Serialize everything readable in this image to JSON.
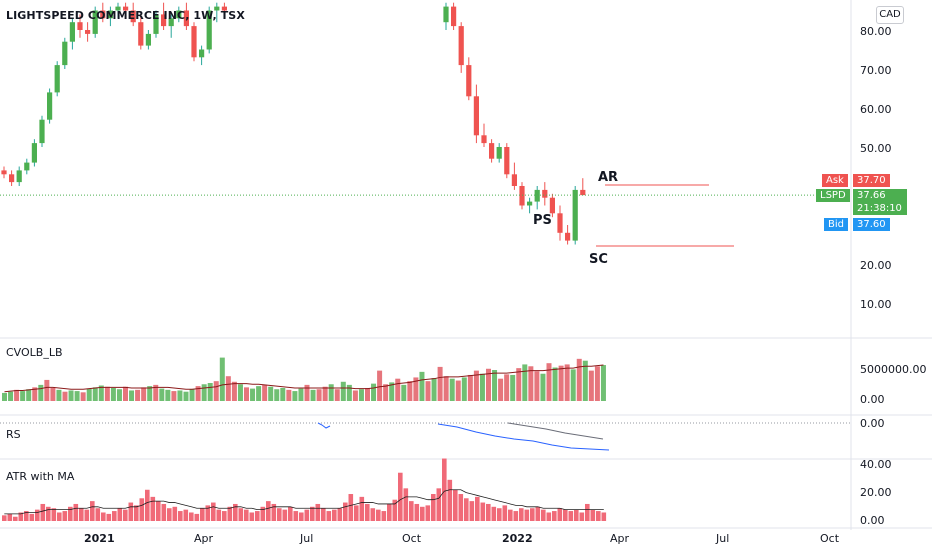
{
  "title": "LIGHTSPEED COMMERCE INC, 1W, TSX",
  "currency": "CAD",
  "x_axis_labels": [
    "2021",
    "Apr",
    "Jul",
    "Oct",
    "2022",
    "Apr",
    "Jul",
    "Oct"
  ],
  "price_axis": [
    "80.00",
    "70.00",
    "60.00",
    "50.00",
    "20.00",
    "10.00"
  ],
  "quotes": {
    "ask_label": "Ask",
    "ask_value": "37.70",
    "symbol": "LSPD",
    "last_value": "37.66",
    "countdown": "21:38:10",
    "bid_label": "Bid",
    "bid_value": "37.60"
  },
  "annotations": {
    "ps": "PS",
    "sc": "SC",
    "ar": "AR"
  },
  "indicators": {
    "volume_name": "CVOLB_LB",
    "volume_ticks": [
      "5000000.00",
      "0.00"
    ],
    "rs_name": "RS",
    "rs_ticks": [
      "0.00"
    ],
    "atr_name": "ATR with MA",
    "atr_ticks": [
      "40.00",
      "20.00",
      "0.00"
    ]
  },
  "colors": {
    "up": "#26a69a",
    "down": "#ef5350",
    "vol_up": "#4caf50",
    "vol_down": "#e0535b",
    "atr_bar": "#f06a78",
    "rs_line": "#2962ff",
    "level_line": "#ef5350",
    "ask": "#ef5350",
    "last": "#4caf50",
    "bid": "#2196f3"
  },
  "chart_data": [
    {
      "type": "candlestick",
      "title": "LIGHTSPEED COMMERCE INC, 1W, TSX",
      "interval": "1W",
      "ylim": [
        0,
        87
      ],
      "axis_labels": [
        "2021",
        "Apr",
        "Jul",
        "Oct",
        "2022",
        "Apr",
        "Jul",
        "Oct"
      ],
      "candles": [
        [
          44,
          45,
          42,
          43
        ],
        [
          43,
          44,
          40,
          41
        ],
        [
          41,
          45,
          40,
          44
        ],
        [
          44,
          47,
          43,
          46
        ],
        [
          46,
          52,
          45,
          51
        ],
        [
          51,
          58,
          50,
          57
        ],
        [
          57,
          65,
          56,
          64
        ],
        [
          64,
          72,
          63,
          71
        ],
        [
          71,
          78,
          70,
          77
        ],
        [
          77,
          83,
          75,
          82
        ],
        [
          82,
          84,
          78,
          80
        ],
        [
          80,
          82,
          77,
          79
        ],
        [
          79,
          86,
          78,
          85
        ],
        [
          85,
          87,
          82,
          83
        ],
        [
          83,
          86,
          81,
          85
        ],
        [
          85,
          87,
          83,
          86
        ],
        [
          86,
          87,
          84,
          85
        ],
        [
          85,
          87,
          81,
          82
        ],
        [
          82,
          84,
          75,
          76
        ],
        [
          76,
          80,
          75,
          79
        ],
        [
          79,
          85,
          78,
          84
        ],
        [
          84,
          87,
          80,
          81
        ],
        [
          81,
          84,
          78,
          83
        ],
        [
          83,
          86,
          82,
          85
        ],
        [
          85,
          87,
          80,
          81
        ],
        [
          81,
          82,
          72,
          73
        ],
        [
          73,
          76,
          71,
          75
        ],
        [
          75,
          86,
          74,
          85
        ],
        [
          85,
          87,
          82,
          86
        ],
        [
          86,
          87,
          84,
          85
        ]
      ],
      "gap_note": "",
      "candles_late": [
        [
          82,
          87,
          80,
          86
        ],
        [
          86,
          87,
          80,
          81
        ],
        [
          81,
          82,
          69,
          71
        ],
        [
          71,
          73,
          62,
          63
        ],
        [
          63,
          66,
          51,
          53
        ],
        [
          53,
          56,
          50,
          51
        ],
        [
          51,
          52,
          46,
          47
        ],
        [
          47,
          51,
          46,
          50
        ],
        [
          50,
          51,
          42,
          43
        ],
        [
          43,
          46,
          39,
          40
        ],
        [
          40,
          41,
          34,
          35
        ],
        [
          35,
          37,
          33,
          36
        ],
        [
          36,
          40,
          34,
          39
        ],
        [
          39,
          41,
          35,
          37
        ],
        [
          37,
          38,
          32,
          33
        ],
        [
          33,
          35,
          26,
          28
        ],
        [
          28,
          30,
          25,
          26
        ],
        [
          26,
          40,
          25,
          39
        ],
        [
          39,
          42,
          38,
          37.66
        ]
      ],
      "last": 37.66,
      "ask": 37.7,
      "bid": 37.6,
      "levels": [
        {
          "label": "AR",
          "value": 42
        },
        {
          "label": "SC",
          "value": 26
        }
      ],
      "marks": [
        {
          "label": "PS"
        },
        {
          "label": "SC"
        },
        {
          "label": "AR"
        }
      ]
    },
    {
      "type": "bar",
      "title": "CVOLB_LB",
      "ylim": [
        0,
        8000000
      ],
      "values": [
        1.3,
        1.5,
        1.8,
        1.6,
        1.9,
        2.2,
        2.6,
        3.4,
        2.1,
        1.8,
        1.5,
        1.7,
        1.6,
        1.4,
        2.0,
        2.2,
        2.5,
        2.3,
        2.1,
        1.9,
        2.3,
        1.7,
        1.8,
        2.2,
        2.4,
        2.6,
        2.0,
        1.8,
        1.6,
        1.7,
        1.5,
        1.9,
        2.4,
        2.7,
        2.9,
        3.2,
        7.0,
        4.0,
        3.1,
        2.7,
        2.2,
        2.0,
        2.4,
        2.6,
        2.3,
        1.9,
        2.1,
        1.8,
        1.6,
        2.0,
        2.6,
        1.8,
        1.9,
        2.3,
        2.7,
        1.9,
        3.1,
        2.6,
        1.7,
        1.9,
        2.1,
        2.8,
        4.9,
        2.7,
        3.0,
        3.6,
        2.6,
        3.2,
        3.8,
        4.7,
        3.2,
        3.7,
        5.5,
        4.0,
        3.6,
        3.3,
        3.8,
        4.2,
        4.9,
        4.4,
        5.2,
        5.0,
        3.6,
        4.3,
        4.2,
        5.3,
        5.9,
        5.6,
        4.8,
        4.4,
        6.1,
        5.4,
        5.7,
        5.9,
        5.1,
        6.8,
        6.5,
        4.9,
        5.6,
        5.8
      ],
      "unit": "millions",
      "ma": [
        1.5,
        1.6,
        1.7,
        1.7,
        1.8,
        1.9,
        2.0,
        2.2,
        2.2,
        2.1,
        2.0,
        1.9,
        1.9,
        1.9,
        2.0,
        2.1,
        2.2,
        2.2,
        2.2,
        2.2,
        2.2,
        2.1,
        2.1,
        2.1,
        2.1,
        2.2,
        2.2,
        2.2,
        2.1,
        2.0,
        1.9,
        1.9,
        2.0,
        2.1,
        2.2,
        2.3,
        2.6,
        2.7,
        2.8,
        2.8,
        2.8,
        2.7,
        2.7,
        2.6,
        2.5,
        2.4,
        2.3,
        2.2,
        2.1,
        2.1,
        2.1,
        2.1,
        2.1,
        2.1,
        2.1,
        2.1,
        2.1,
        2.1,
        2.0,
        2.0,
        2.0,
        2.1,
        2.3,
        2.4,
        2.6,
        2.8,
        2.9,
        3.0,
        3.2,
        3.4,
        3.5,
        3.6,
        3.8,
        3.9,
        3.9,
        3.9,
        4.0,
        4.1,
        4.2,
        4.3,
        4.4,
        4.5,
        4.5,
        4.5,
        4.6,
        4.7,
        4.8,
        4.9,
        4.9,
        4.9,
        5.0,
        5.1,
        5.2,
        5.3,
        5.3,
        5.5,
        5.6,
        5.6,
        5.7,
        5.8
      ]
    },
    {
      "type": "line",
      "title": "RS",
      "series": [
        {
          "name": "RS",
          "values": [
            0.0,
            -0.02,
            -0.05,
            -0.03
          ]
        },
        {
          "name": "",
          "values": [
            -0.01,
            -0.04,
            -0.09,
            -0.13,
            -0.16,
            -0.18,
            -0.22,
            -0.25,
            -0.26,
            -0.27
          ]
        },
        {
          "name": "",
          "values": [
            0.0,
            -0.03,
            -0.06,
            -0.1,
            -0.13,
            -0.16
          ]
        }
      ]
    },
    {
      "type": "bar",
      "title": "ATR with MA",
      "ylim": [
        0,
        45
      ],
      "values": [
        4,
        5,
        3,
        6,
        7,
        5,
        8,
        12,
        10,
        9,
        6,
        7,
        10,
        12,
        9,
        8,
        14,
        9,
        6,
        5,
        7,
        9,
        8,
        13,
        11,
        16,
        22,
        17,
        14,
        12,
        9,
        10,
        7,
        8,
        6,
        5,
        9,
        11,
        13,
        8,
        7,
        10,
        12,
        9,
        8,
        6,
        7,
        10,
        14,
        12,
        9,
        8,
        10,
        7,
        6,
        8,
        10,
        12,
        9,
        7,
        8,
        9,
        13,
        19,
        11,
        17,
        12,
        9,
        8,
        7,
        12,
        15,
        34,
        23,
        14,
        12,
        10,
        11,
        19,
        23,
        44,
        29,
        22,
        19,
        16,
        14,
        17,
        13,
        12,
        10,
        9,
        11,
        8,
        7,
        9,
        8,
        9,
        10,
        8,
        6,
        7,
        9,
        8,
        7,
        8,
        6,
        12,
        8,
        7,
        6
      ],
      "ma": [
        5,
        5,
        5,
        5,
        6,
        6,
        6,
        7,
        8,
        8,
        8,
        8,
        8,
        9,
        9,
        9,
        10,
        10,
        9,
        9,
        9,
        9,
        9,
        10,
        10,
        11,
        13,
        14,
        14,
        14,
        13,
        13,
        12,
        11,
        10,
        9,
        9,
        9,
        10,
        9,
        9,
        9,
        10,
        10,
        9,
        9,
        8,
        8,
        9,
        10,
        10,
        10,
        10,
        9,
        9,
        9,
        9,
        9,
        9,
        9,
        9,
        9,
        10,
        11,
        12,
        13,
        13,
        13,
        12,
        12,
        12,
        12,
        15,
        17,
        17,
        17,
        16,
        15,
        15,
        16,
        21,
        22,
        22,
        22,
        20,
        19,
        18,
        17,
        16,
        15,
        14,
        13,
        12,
        11,
        11,
        10,
        10,
        10,
        9,
        9,
        9,
        9,
        8,
        8,
        8,
        8,
        8,
        8,
        8,
        8
      ]
    }
  ]
}
